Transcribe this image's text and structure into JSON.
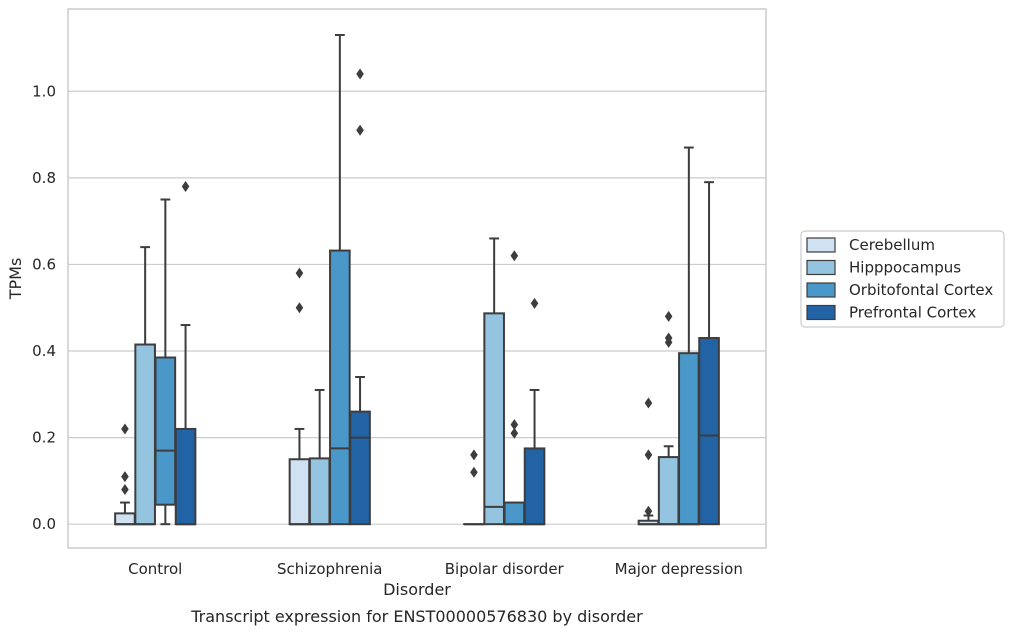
{
  "chart_data": {
    "type": "box",
    "xlabel": "Disorder",
    "ylabel": "TPMs",
    "caption": "Transcript expression for ENST00000576830 by disorder",
    "ylim": [
      -0.055,
      1.19
    ],
    "yticks": [
      "0.0",
      "0.2",
      "0.4",
      "0.6",
      "0.8",
      "1.0"
    ],
    "ytick_values": [
      0.0,
      0.2,
      0.4,
      0.6,
      0.8,
      1.0
    ],
    "grid": "horizontal",
    "legend_position": "right",
    "categories": [
      "Control",
      "Schizophrenia",
      "Bipolar disorder",
      "Major depression"
    ],
    "series": [
      {
        "name": "Cerebellum",
        "color": "#d0e1f2",
        "boxes": [
          {
            "min": 0.0,
            "q1": 0.0,
            "median": 0.0,
            "q3": 0.025,
            "max": 0.05,
            "outliers": [
              0.08,
              0.11,
              0.22
            ]
          },
          {
            "min": 0.0,
            "q1": 0.0,
            "median": 0.0,
            "q3": 0.15,
            "max": 0.22,
            "outliers": [
              0.5,
              0.58
            ]
          },
          {
            "min": 0.0,
            "q1": 0.0,
            "median": 0.0,
            "q3": 0.0,
            "max": 0.0,
            "outliers": [
              0.12,
              0.16
            ]
          },
          {
            "min": 0.0,
            "q1": 0.0,
            "median": 0.0,
            "q3": 0.008,
            "max": 0.02,
            "outliers": [
              0.03,
              0.16,
              0.28
            ]
          }
        ]
      },
      {
        "name": "Hipppocampus",
        "color": "#94c4df",
        "boxes": [
          {
            "min": 0.0,
            "q1": 0.0,
            "median": 0.0,
            "q3": 0.415,
            "max": 0.64,
            "outliers": []
          },
          {
            "min": 0.0,
            "q1": 0.0,
            "median": 0.0,
            "q3": 0.152,
            "max": 0.31,
            "outliers": []
          },
          {
            "min": 0.0,
            "q1": 0.0,
            "median": 0.04,
            "q3": 0.487,
            "max": 0.66,
            "outliers": []
          },
          {
            "min": 0.0,
            "q1": 0.0,
            "median": 0.0,
            "q3": 0.155,
            "max": 0.18,
            "outliers": [
              0.42,
              0.43,
              0.48
            ]
          }
        ]
      },
      {
        "name": "Orbitofontal Cortex",
        "color": "#4a98c9",
        "boxes": [
          {
            "min": 0.0,
            "q1": 0.045,
            "median": 0.17,
            "q3": 0.385,
            "max": 0.75,
            "outliers": []
          },
          {
            "min": 0.0,
            "q1": 0.0,
            "median": 0.175,
            "q3": 0.632,
            "max": 1.13,
            "outliers": []
          },
          {
            "min": 0.0,
            "q1": 0.0,
            "median": 0.0,
            "q3": 0.05,
            "max": 0.05,
            "outliers": [
              0.21,
              0.23,
              0.62
            ]
          },
          {
            "min": 0.0,
            "q1": 0.0,
            "median": 0.0,
            "q3": 0.395,
            "max": 0.87,
            "outliers": []
          }
        ]
      },
      {
        "name": "Prefrontal Cortex",
        "color": "#2163a5",
        "boxes": [
          {
            "min": 0.0,
            "q1": 0.0,
            "median": 0.0,
            "q3": 0.22,
            "max": 0.46,
            "outliers": [
              0.78
            ]
          },
          {
            "min": 0.0,
            "q1": 0.0,
            "median": 0.2,
            "q3": 0.26,
            "max": 0.34,
            "outliers": [
              0.91,
              1.04
            ]
          },
          {
            "min": 0.0,
            "q1": 0.0,
            "median": 0.0,
            "q3": 0.175,
            "max": 0.31,
            "outliers": [
              0.51
            ]
          },
          {
            "min": 0.0,
            "q1": 0.0,
            "median": 0.205,
            "q3": 0.43,
            "max": 0.79,
            "outliers": []
          }
        ]
      }
    ]
  }
}
